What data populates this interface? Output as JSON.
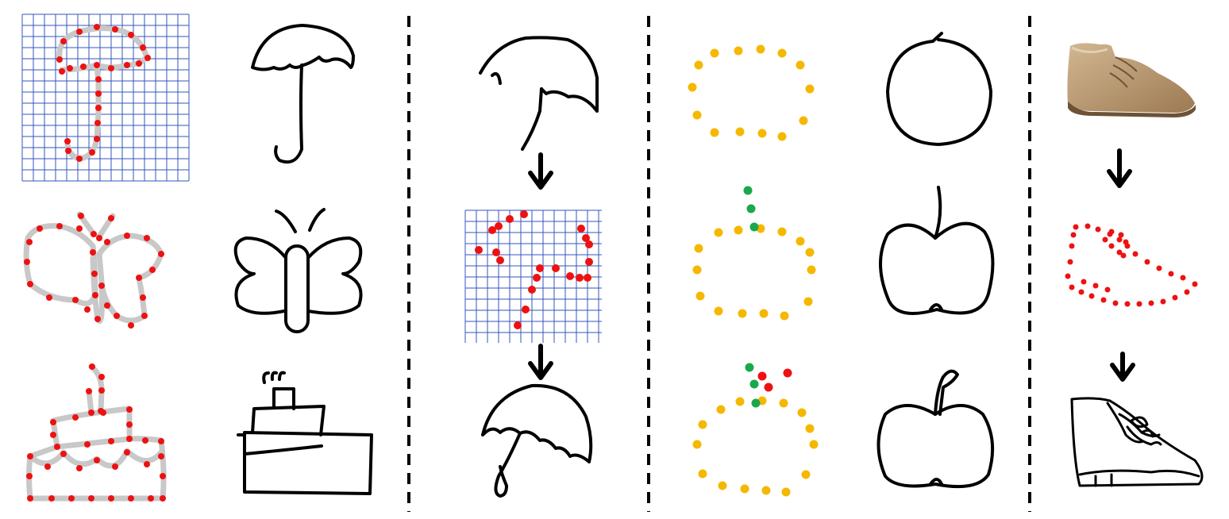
{
  "figure": {
    "colors": {
      "stroke": "#000000",
      "control_point": "#ee1111",
      "guide_path": "#c8c8c8",
      "grid": "#3355bb",
      "existing_point": "#f5b800",
      "new_point_green": "#1aa84a",
      "new_point_red": "#ee1111",
      "divider": "#000000",
      "boot_light": "#c8aa86",
      "boot_dark": "#8b6a45"
    },
    "sections": [
      {
        "name": "point-sequence-examples",
        "rows": [
          "umbrella",
          "butterfly",
          "cake"
        ]
      },
      {
        "name": "sketch-refinement-pipeline",
        "rows": [
          "coarse-umbrella",
          "grid-points",
          "refined-umbrella"
        ]
      },
      {
        "name": "point-completion",
        "rows": [
          "circle",
          "apple-with-stem",
          "apple-with-leaf"
        ]
      },
      {
        "name": "photo-to-sketch",
        "rows": [
          "boot-photo",
          "boot-points",
          "boot-sketch"
        ]
      }
    ],
    "icons": [
      "down-arrow-icon",
      "divider-line",
      "grid",
      "control-point",
      "photo-boot"
    ]
  }
}
